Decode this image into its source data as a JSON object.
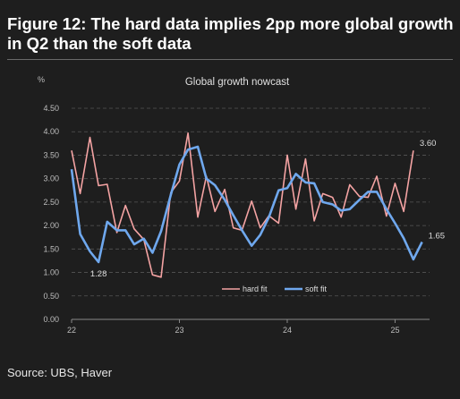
{
  "title": "Figure 12: The hard data implies 2pp more global growth in Q2 than the soft data",
  "source": "Source: UBS, Haver",
  "chart_data": {
    "type": "line",
    "subtitle": "Global growth nowcast",
    "ylabel": "%",
    "xlabel": "",
    "ylim": [
      0,
      4.5
    ],
    "yticks": [
      "0.00",
      "0.50",
      "1.00",
      "1.50",
      "2.00",
      "2.50",
      "3.00",
      "3.50",
      "4.00",
      "4.50"
    ],
    "xlim": [
      2022.0,
      2025.32
    ],
    "xticks": [
      {
        "label": "22",
        "value": 2022.0
      },
      {
        "label": "23",
        "value": 2023.0
      },
      {
        "label": "24",
        "value": 2024.0
      },
      {
        "label": "25",
        "value": 2025.0
      }
    ],
    "grid": "horizontal dashed",
    "legend_position": "bottom-center",
    "series": [
      {
        "name": "hard fit",
        "color": "#f4a3a3",
        "end_label": "3.60",
        "x": [
          2022.0,
          2022.08,
          2022.17,
          2022.25,
          2022.33,
          2022.42,
          2022.5,
          2022.58,
          2022.67,
          2022.75,
          2022.83,
          2022.92,
          2023.0,
          2023.08,
          2023.17,
          2023.25,
          2023.33,
          2023.42,
          2023.5,
          2023.58,
          2023.67,
          2023.75,
          2023.83,
          2023.92,
          2024.0,
          2024.08,
          2024.17,
          2024.25,
          2024.33,
          2024.42,
          2024.5,
          2024.58,
          2024.67,
          2024.75,
          2024.83,
          2024.92,
          2025.0,
          2025.08,
          2025.17
        ],
        "values": [
          3.6,
          2.68,
          3.88,
          2.85,
          2.88,
          1.85,
          2.43,
          1.93,
          1.7,
          0.95,
          0.9,
          2.7,
          2.95,
          3.97,
          2.18,
          3.05,
          2.3,
          2.77,
          1.95,
          1.9,
          2.52,
          1.95,
          2.21,
          2.05,
          3.5,
          2.35,
          3.42,
          2.1,
          2.68,
          2.6,
          2.18,
          2.87,
          2.62,
          2.6,
          3.05,
          2.2,
          2.9,
          2.3,
          3.6
        ]
      },
      {
        "name": "soft fit",
        "color": "#6fa8ee",
        "end_label": "1.65",
        "min_label": "1.28",
        "x": [
          2022.0,
          2022.08,
          2022.17,
          2022.25,
          2022.33,
          2022.42,
          2022.5,
          2022.58,
          2022.67,
          2022.75,
          2022.83,
          2022.92,
          2023.0,
          2023.08,
          2023.17,
          2023.25,
          2023.33,
          2023.42,
          2023.5,
          2023.58,
          2023.67,
          2023.75,
          2023.83,
          2023.92,
          2024.0,
          2024.08,
          2024.17,
          2024.25,
          2024.33,
          2024.42,
          2024.5,
          2024.58,
          2024.67,
          2024.75,
          2024.83,
          2024.92,
          2025.0,
          2025.08,
          2025.17,
          2025.25
        ],
        "values": [
          3.2,
          1.82,
          1.45,
          1.22,
          2.08,
          1.9,
          1.9,
          1.6,
          1.72,
          1.42,
          1.88,
          2.65,
          3.3,
          3.62,
          3.68,
          3.0,
          2.86,
          2.55,
          2.22,
          1.9,
          1.57,
          1.8,
          2.18,
          2.75,
          2.8,
          3.1,
          2.92,
          2.9,
          2.5,
          2.45,
          2.32,
          2.35,
          2.55,
          2.72,
          2.72,
          2.35,
          2.05,
          1.73,
          1.28,
          1.65
        ]
      }
    ]
  }
}
